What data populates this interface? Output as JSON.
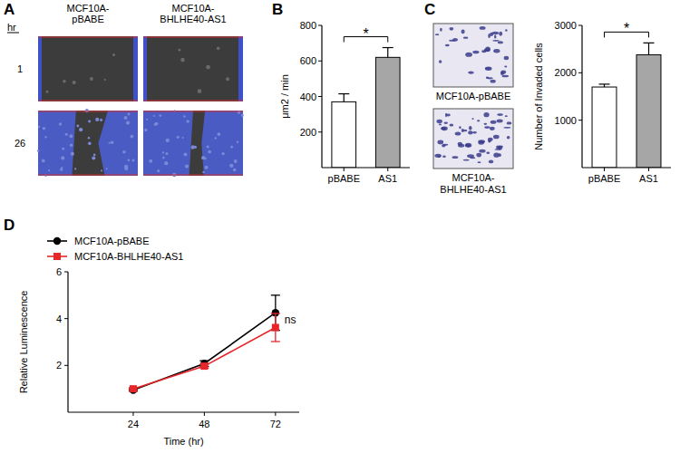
{
  "panel_labels": [
    "A",
    "B",
    "C",
    "D"
  ],
  "wound_healing": {
    "row_header": "hr",
    "rows": [
      "1",
      "26"
    ],
    "columns": [
      [
        "MCF10A-",
        "pBABE"
      ],
      [
        "MCF10A-",
        "BHLHE40-AS1"
      ]
    ]
  },
  "invasion_images": {
    "labels": [
      [
        "MCF10A-pBABE"
      ],
      [
        "MCF10A-",
        "BHLHE40-AS1"
      ]
    ]
  },
  "chart_data": [
    {
      "type": "bar",
      "categories": [
        "pBABE",
        "AS1"
      ],
      "values": [
        370,
        620
      ],
      "errors": [
        45,
        55
      ],
      "colors": [
        "#ffffff",
        "#a6a6a6"
      ],
      "y_label": "μm2 / min",
      "ylim": [
        0,
        800
      ],
      "yticks": [
        200,
        400,
        600,
        800
      ],
      "annotation": "*"
    },
    {
      "type": "bar",
      "categories": [
        "pBABE",
        "AS1"
      ],
      "values": [
        1700,
        2380
      ],
      "errors": [
        60,
        250
      ],
      "colors": [
        "#ffffff",
        "#a6a6a6"
      ],
      "y_label": "Number of Invaded cells",
      "ylim": [
        0,
        3000
      ],
      "yticks": [
        1000,
        2000,
        3000
      ],
      "annotation": "*"
    },
    {
      "type": "line",
      "x": [
        24,
        48,
        72
      ],
      "x_label": "Time (hr)",
      "y_label": "Relative Luminescence",
      "xlim": [
        2,
        80
      ],
      "ylim": [
        0,
        6
      ],
      "xticks": [
        24,
        48,
        72
      ],
      "yticks": [
        2,
        4,
        6
      ],
      "annotation": "ns",
      "legend": "top-left",
      "series": [
        {
          "name": "MCF10A-pBABE",
          "color": "#000000",
          "marker": "circle",
          "values": [
            0.95,
            2.08,
            4.25
          ],
          "errors": [
            0.05,
            0.12,
            0.75
          ]
        },
        {
          "name": "MCF10A-BHLHE40-AS1",
          "color": "#e8262a",
          "marker": "square",
          "values": [
            1.0,
            1.97,
            3.62
          ],
          "errors": [
            0.05,
            0.08,
            0.6
          ]
        }
      ]
    }
  ]
}
